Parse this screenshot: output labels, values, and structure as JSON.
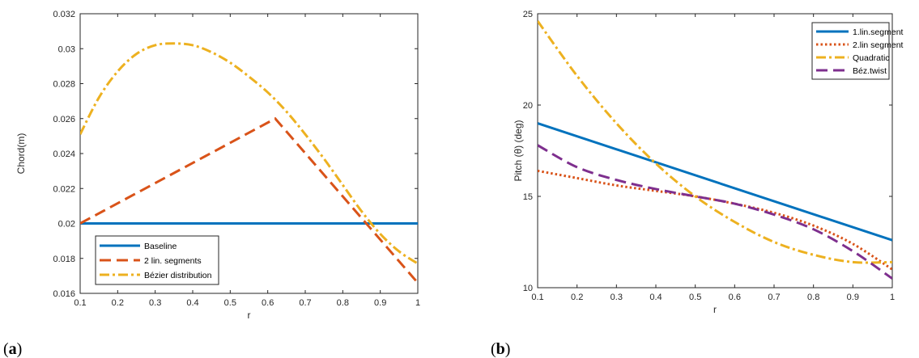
{
  "chart_data": [
    {
      "type": "line",
      "panel_label": "(a)",
      "xlabel": "r",
      "ylabel": "Chord(m)",
      "xlim": [
        0.1,
        1.0
      ],
      "ylim": [
        0.016,
        0.032
      ],
      "xticks": [
        0.1,
        0.2,
        0.3,
        0.4,
        0.5,
        0.6,
        0.7,
        0.8,
        0.9,
        1.0
      ],
      "xtick_labels": [
        "0.1",
        "0.2",
        "0.3",
        "0.4",
        "0.5",
        "0.6",
        "0.7",
        "0.8",
        "0.9",
        "1"
      ],
      "yticks": [
        0.016,
        0.018,
        0.02,
        0.022,
        0.024,
        0.026,
        0.028,
        0.03,
        0.032
      ],
      "ytick_labels": [
        "0.016",
        "0.018",
        "0.02",
        "0.022",
        "0.024",
        "0.026",
        "0.028",
        "0.03",
        "0.032"
      ],
      "grid": false,
      "legend_position": "bottom-left",
      "series": [
        {
          "name": "Baseline",
          "color": "#0072BD",
          "style": "solid",
          "x": [
            0.1,
            1.0
          ],
          "y": [
            0.02,
            0.02
          ]
        },
        {
          "name": "2 lin. segments",
          "color": "#D95319",
          "style": "dashed",
          "x": [
            0.1,
            0.62,
            1.0
          ],
          "y": [
            0.02,
            0.026,
            0.0166
          ]
        },
        {
          "name": "Bézier distribution",
          "color": "#EDB120",
          "style": "dashdot",
          "x": [
            0.1,
            0.15,
            0.2,
            0.25,
            0.3,
            0.35,
            0.4,
            0.45,
            0.5,
            0.55,
            0.6,
            0.65,
            0.7,
            0.75,
            0.8,
            0.85,
            0.9,
            0.95,
            1.0
          ],
          "y": [
            0.0251,
            0.0272,
            0.0287,
            0.0297,
            0.0302,
            0.0303,
            0.0302,
            0.0298,
            0.0292,
            0.0284,
            0.0275,
            0.0264,
            0.0251,
            0.0237,
            0.0222,
            0.0207,
            0.0194,
            0.0184,
            0.0177
          ]
        }
      ]
    },
    {
      "type": "line",
      "panel_label": "(b)",
      "xlabel": "r",
      "ylabel": "Pitch (θ) (deg)",
      "xlim": [
        0.1,
        1.0
      ],
      "ylim": [
        10,
        25
      ],
      "xticks": [
        0.1,
        0.2,
        0.3,
        0.4,
        0.5,
        0.6,
        0.7,
        0.8,
        0.9,
        1.0
      ],
      "xtick_labels": [
        "0.1",
        "0.2",
        "0.3",
        "0.4",
        "0.5",
        "0.6",
        "0.7",
        "0.8",
        "0.9",
        "1"
      ],
      "yticks": [
        10,
        15,
        20,
        25
      ],
      "ytick_labels": [
        "10",
        "15",
        "20",
        "25"
      ],
      "grid": false,
      "legend_position": "top-right",
      "series": [
        {
          "name": "1.lin.segment",
          "color": "#0072BD",
          "style": "solid",
          "x": [
            0.1,
            1.0
          ],
          "y": [
            19.0,
            12.6
          ]
        },
        {
          "name": "2.lin segment",
          "color": "#D95319",
          "style": "dotted",
          "x": [
            0.1,
            0.2,
            0.3,
            0.4,
            0.5,
            0.6,
            0.7,
            0.8,
            0.9,
            1.0
          ],
          "y": [
            16.4,
            16.0,
            15.6,
            15.3,
            15.0,
            14.6,
            14.1,
            13.4,
            12.4,
            11.0
          ]
        },
        {
          "name": "Quadratic",
          "color": "#EDB120",
          "style": "dashdot",
          "x": [
            0.1,
            0.2,
            0.3,
            0.4,
            0.5,
            0.6,
            0.7,
            0.8,
            0.9,
            1.0
          ],
          "y": [
            24.6,
            21.6,
            19.0,
            16.8,
            15.0,
            13.6,
            12.5,
            11.8,
            11.4,
            11.4
          ]
        },
        {
          "name": "Béz.twist",
          "color": "#7E2F8E",
          "style": "dashed",
          "x": [
            0.1,
            0.2,
            0.3,
            0.4,
            0.5,
            0.6,
            0.7,
            0.8,
            0.9,
            1.0
          ],
          "y": [
            17.8,
            16.6,
            15.9,
            15.4,
            15.0,
            14.6,
            14.0,
            13.2,
            12.0,
            10.5
          ]
        }
      ]
    }
  ]
}
